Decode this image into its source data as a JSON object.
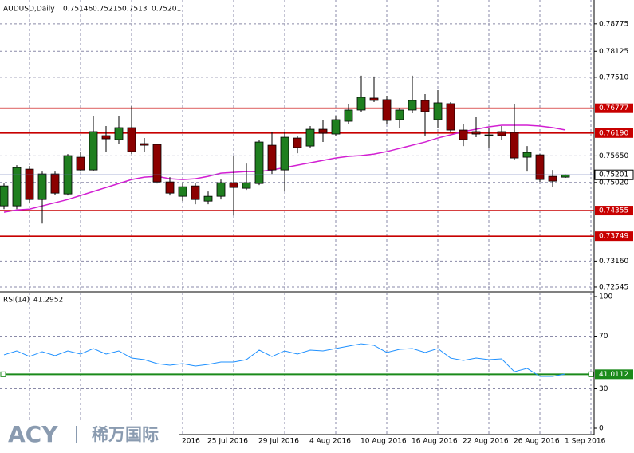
{
  "chart_data": [
    {
      "type": "candlestick",
      "title": "AUDUSD,Daily",
      "categories": [
        null,
        null,
        null,
        null,
        null,
        null,
        null,
        null,
        null,
        null,
        null,
        null,
        null,
        null,
        "2016",
        null,
        "25 Jul 2016",
        null,
        null,
        null,
        "29 Jul 2016",
        null,
        null,
        null,
        "4 Aug 2016",
        null,
        null,
        null,
        "10 Aug 2016",
        null,
        null,
        null,
        "16 Aug 2016",
        null,
        null,
        null,
        "22 Aug 2016",
        null,
        null,
        null,
        "26 Aug 2016",
        null,
        null,
        null,
        "1 Sep 2016"
      ],
      "open": [
        0.74466,
        0.74466,
        0.75335,
        0.74617,
        0.75222,
        0.74749,
        0.75619,
        0.75316,
        0.76129,
        0.76035,
        0.76318,
        0.7594,
        0.75921,
        0.75033,
        0.74693,
        0.74938,
        0.74579,
        0.74693,
        0.75014,
        0.74882,
        0.74995,
        0.75902,
        0.75316,
        0.76072,
        0.75883,
        0.7628,
        0.76167,
        0.76469,
        0.76734,
        0.77017,
        0.7698,
        0.76507,
        0.76734,
        0.76961,
        0.76507,
        0.76885,
        0.76261,
        0.76224,
        0.76129,
        0.76224,
        0.76205,
        0.75619,
        0.75675,
        0.75165,
        0.75146
      ],
      "high": [
        0.74995,
        0.7543,
        0.75411,
        0.75279,
        0.75279,
        0.75694,
        0.75751,
        0.76583,
        0.76356,
        0.76602,
        0.76828,
        0.76072,
        0.7594,
        0.75146,
        0.74995,
        0.74995,
        0.74806,
        0.7509,
        0.75638,
        0.75468,
        0.76035,
        0.76224,
        0.76224,
        0.76129,
        0.76356,
        0.76507,
        0.76602,
        0.76885,
        0.77547,
        0.77528,
        0.77074,
        0.76791,
        0.77547,
        0.77112,
        0.77206,
        0.76923,
        0.76413,
        0.76564,
        0.76318,
        0.76356,
        0.76885,
        0.75883,
        0.75694,
        0.75316,
        0.75215
      ],
      "low": [
        0.7439,
        0.7439,
        0.74523,
        0.7405,
        0.7473,
        0.74712,
        0.75279,
        0.75297,
        0.75751,
        0.7594,
        0.75694,
        0.75751,
        0.74995,
        0.74712,
        0.74579,
        0.74504,
        0.74504,
        0.74617,
        0.74239,
        0.74844,
        0.74957,
        0.75222,
        0.74806,
        0.75713,
        0.75827,
        0.75978,
        0.76129,
        0.76394,
        0.76696,
        0.76923,
        0.76413,
        0.76318,
        0.76658,
        0.76129,
        0.76318,
        0.76224,
        0.75883,
        0.76091,
        0.75846,
        0.76035,
        0.75562,
        0.75279,
        0.75033,
        0.74919,
        0.7513
      ],
      "close": [
        0.74938,
        0.75373,
        0.74617,
        0.75222,
        0.74768,
        0.75657,
        0.75316,
        0.76224,
        0.76053,
        0.76318,
        0.75751,
        0.75902,
        0.75033,
        0.74768,
        0.74919,
        0.74617,
        0.74693,
        0.75014,
        0.74901,
        0.75014,
        0.75978,
        0.75316,
        0.76091,
        0.75846,
        0.7628,
        0.76186,
        0.76507,
        0.76734,
        0.77036,
        0.76961,
        0.76488,
        0.76734,
        0.76961,
        0.76696,
        0.76904,
        0.76261,
        0.76035,
        0.76167,
        0.76148,
        0.76129,
        0.756,
        0.75732,
        0.7509,
        0.75052,
        0.75201
      ],
      "bull_color": "#1f7f1f",
      "bear_color": "#8b0000",
      "ma": {
        "color": "#d21fd2",
        "values": [
          0.74315,
          0.74371,
          0.7439,
          0.74466,
          0.74541,
          0.74617,
          0.74712,
          0.74806,
          0.74901,
          0.74995,
          0.7509,
          0.75146,
          0.75165,
          0.75108,
          0.7509,
          0.75108,
          0.75165,
          0.75241,
          0.7526,
          0.75279,
          0.75279,
          0.75316,
          0.75373,
          0.7543,
          0.75486,
          0.75543,
          0.756,
          0.75638,
          0.75657,
          0.75694,
          0.75751,
          0.75827,
          0.75902,
          0.75978,
          0.76072,
          0.76148,
          0.76224,
          0.7628,
          0.76337,
          0.76375,
          0.76375,
          0.76375,
          0.76356,
          0.76318,
          0.76261
        ]
      },
      "levels": [
        0.76777,
        {
          "value": 0.7619,
          "label": "0.76190"
        },
        0.74355,
        0.73749
      ],
      "level_color": "#c80000",
      "price_line_color": "#5a6fb0",
      "ylim": [
        0.7245,
        0.793
      ],
      "yticks": [
        0.78775,
        0.78125,
        {
          "value": 0.7751,
          "label": "0.77510"
        },
        {
          "value": 0.7565,
          "label": "0.75650"
        },
        {
          "value": 0.7502,
          "label": "0.75020"
        },
        {
          "value": 0.7316,
          "label": "0.73160"
        },
        0.72545
      ],
      "grid": true
    },
    {
      "type": "line",
      "title": "RSI(14)",
      "values": [
        55.8,
        58.8,
        54.5,
        58.2,
        55.2,
        58.8,
        56.4,
        60.6,
        56.4,
        58.8,
        53.3,
        52.1,
        49.1,
        47.9,
        49.1,
        47.3,
        48.5,
        50.3,
        50.3,
        52.1,
        59.4,
        54.5,
        58.8,
        56.4,
        59.4,
        58.8,
        60.6,
        62.4,
        64.2,
        63.0,
        57.6,
        60.0,
        60.6,
        57.6,
        60.6,
        53.3,
        51.5,
        53.3,
        52.1,
        52.7,
        43.0,
        45.5,
        39.4,
        39.4,
        41.2952
      ],
      "color": "#1e90ff",
      "level": 41.0112,
      "level_color": "#1a8a1a",
      "ylim": [
        0,
        100
      ],
      "yticks": [
        100,
        70,
        30,
        0
      ],
      "grid": true
    }
  ],
  "logo": {
    "brand": "ACY",
    "name": "稀万国际"
  }
}
